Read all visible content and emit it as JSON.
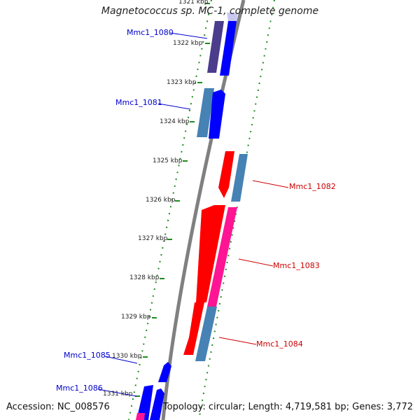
{
  "title": "Magnetococcus sp. MC-1, complete genome",
  "accession": "Accession: NC_008576",
  "topology": "Topology: circular; Length: 4,719,581 bp; Genes: 3,772",
  "colors": {
    "backbone": "#808080",
    "gc_track": "#1e8c1e",
    "label_blue": "#0000cc",
    "label_red": "#cc0000",
    "cds_blue": "#0000ff",
    "cds_purple": "#4b3c8c",
    "cds_steel": "#4682b4",
    "cds_red": "#ff0000",
    "cds_pink": "#ff1493"
  },
  "ticks": [
    "1321 kbp",
    "1322 kbp",
    "1323 kbp",
    "1324 kbp",
    "1325 kbp",
    "1326 kbp",
    "1327 kbp",
    "1328 kbp",
    "1329 kbp",
    "1330 kbp",
    "1331 kbp"
  ],
  "labels": {
    "mmc1_1080": "Mmc1_1080",
    "mmc1_1081": "Mmc1_1081",
    "mmc1_1082": "Mmc1_1082",
    "mmc1_1083": "Mmc1_1083",
    "mmc1_1084": "Mmc1_1084",
    "mmc1_1085": "Mmc1_1085",
    "mmc1_1086": "Mmc1_1086"
  }
}
